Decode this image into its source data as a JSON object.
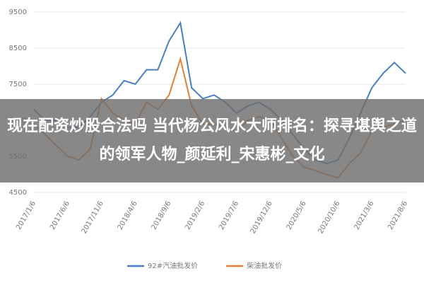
{
  "chart_data": {
    "type": "line",
    "categories": [
      "2017/1/6",
      null,
      null,
      "2017/6/6",
      null,
      null,
      "2017/11/6",
      null,
      null,
      "2018/4/6",
      null,
      null,
      "2018/9/6",
      null,
      null,
      "2019/2/6",
      null,
      null,
      "2019/7/6",
      null,
      null,
      "2019/12/6",
      null,
      null,
      "2020/5/6",
      null,
      null,
      "2020/10/6",
      null,
      null,
      "2021/3/6",
      null,
      null,
      "2021/8/6"
    ],
    "series": [
      {
        "name": "92#汽油批发价",
        "color": "#4a7fc1",
        "values": [
          6800,
          6500,
          6500,
          6300,
          6300,
          6600,
          7000,
          7200,
          7600,
          7500,
          7900,
          7900,
          8700,
          9200,
          7400,
          7100,
          7200,
          7000,
          6700,
          6900,
          7000,
          6800,
          6500,
          6100,
          5700,
          5400,
          5300,
          5400,
          6000,
          6700,
          7400,
          7800,
          8100,
          7800
        ]
      },
      {
        "name": "柴油批发价",
        "color": "#e0813a",
        "values": [
          6400,
          6100,
          5800,
          5500,
          5400,
          5700,
          7100,
          6700,
          6500,
          6400,
          7000,
          6800,
          7200,
          8200,
          6900,
          6400,
          6400,
          6300,
          6200,
          6500,
          6600,
          6500,
          6000,
          5500,
          5200,
          5100,
          5000,
          4900,
          5300,
          5600,
          6200,
          6300,
          6400,
          6500
        ]
      }
    ],
    "ylim": [
      4500,
      9500
    ],
    "yticks": [
      4500,
      5500,
      6500,
      7500,
      8500,
      9500
    ],
    "grid": true,
    "legend": "bottom"
  },
  "overlay_title": "现在配资炒股合法吗 当代杨公风水大师排名：探寻堪舆之道的领军人物_颜延利_宋惠彬_文化"
}
